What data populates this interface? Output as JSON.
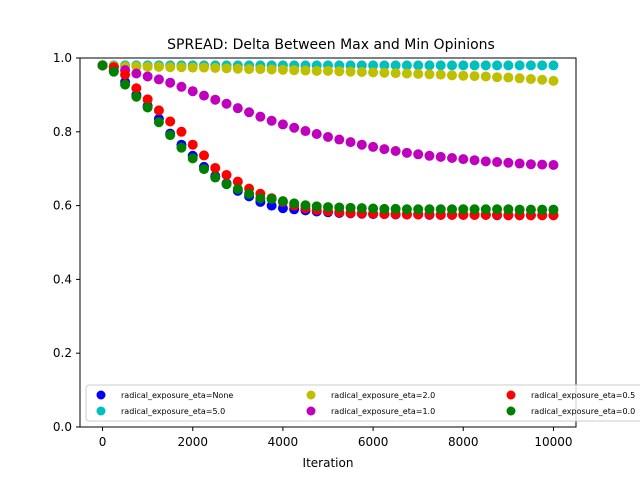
{
  "chart_data": {
    "type": "scatter",
    "title": "SPREAD: Delta Between Max and Min Opinions",
    "xlabel": "Iteration",
    "ylabel": "",
    "xlim": [
      -500,
      10500
    ],
    "ylim": [
      0,
      1.0
    ],
    "xticks": [
      0,
      2000,
      4000,
      6000,
      8000,
      10000
    ],
    "xtick_labels": [
      "0",
      "2000",
      "4000",
      "6000",
      "8000",
      "10000"
    ],
    "yticks": [
      0,
      0.2,
      0.4,
      0.6,
      0.8,
      1.0
    ],
    "ytick_labels": [
      "0.0",
      "0.2",
      "0.4",
      "0.6",
      "0.8",
      "1.0"
    ],
    "grid": false,
    "legend_position": "bottom",
    "x": [
      0,
      250,
      500,
      750,
      1000,
      1250,
      1500,
      1750,
      2000,
      2250,
      2500,
      2750,
      3000,
      3250,
      3500,
      3750,
      4000,
      4250,
      4500,
      4750,
      5000,
      5250,
      5500,
      5750,
      6000,
      6250,
      6500,
      6750,
      7000,
      7250,
      7500,
      7750,
      8000,
      8250,
      8500,
      8750,
      9000,
      9250,
      9500,
      9750,
      10000
    ],
    "series": [
      {
        "name": "radical_exposure_eta=None",
        "color": "#0000ff",
        "values": [
          0.98,
          0.965,
          0.935,
          0.9,
          0.87,
          0.835,
          0.795,
          0.765,
          0.735,
          0.705,
          0.68,
          0.66,
          0.64,
          0.625,
          0.61,
          0.6,
          0.593,
          0.59,
          0.587,
          0.584,
          0.582,
          0.58,
          0.579,
          0.578,
          0.577,
          0.577,
          0.576,
          0.576,
          0.576,
          0.575,
          0.575,
          0.575,
          0.575,
          0.575,
          0.575,
          0.574,
          0.574,
          0.574,
          0.574,
          0.574,
          0.574
        ]
      },
      {
        "name": "radical_exposure_eta=5.0",
        "color": "#00bfbf",
        "values": [
          0.98,
          0.98,
          0.98,
          0.98,
          0.98,
          0.98,
          0.98,
          0.98,
          0.98,
          0.98,
          0.98,
          0.98,
          0.98,
          0.98,
          0.98,
          0.98,
          0.98,
          0.98,
          0.98,
          0.98,
          0.98,
          0.98,
          0.98,
          0.98,
          0.98,
          0.98,
          0.98,
          0.98,
          0.98,
          0.98,
          0.98,
          0.98,
          0.98,
          0.98,
          0.98,
          0.98,
          0.98,
          0.98,
          0.98,
          0.98,
          0.98
        ]
      },
      {
        "name": "radical_exposure_eta=2.0",
        "color": "#bfbf00",
        "values": [
          0.98,
          0.978,
          0.977,
          0.977,
          0.976,
          0.976,
          0.975,
          0.975,
          0.974,
          0.974,
          0.973,
          0.972,
          0.971,
          0.97,
          0.97,
          0.969,
          0.968,
          0.967,
          0.966,
          0.965,
          0.965,
          0.964,
          0.963,
          0.962,
          0.961,
          0.96,
          0.959,
          0.958,
          0.957,
          0.956,
          0.955,
          0.953,
          0.952,
          0.951,
          0.95,
          0.948,
          0.947,
          0.945,
          0.943,
          0.941,
          0.938
        ]
      },
      {
        "name": "radical_exposure_eta=1.0",
        "color": "#bf00bf",
        "values": [
          0.98,
          0.975,
          0.967,
          0.958,
          0.95,
          0.942,
          0.933,
          0.922,
          0.91,
          0.898,
          0.887,
          0.876,
          0.864,
          0.853,
          0.841,
          0.83,
          0.82,
          0.811,
          0.802,
          0.794,
          0.786,
          0.779,
          0.772,
          0.765,
          0.759,
          0.753,
          0.748,
          0.743,
          0.739,
          0.735,
          0.732,
          0.729,
          0.726,
          0.723,
          0.72,
          0.718,
          0.716,
          0.714,
          0.712,
          0.711,
          0.71
        ]
      },
      {
        "name": "radical_exposure_eta=0.5",
        "color": "#ff0000",
        "values": [
          0.98,
          0.975,
          0.955,
          0.918,
          0.888,
          0.858,
          0.828,
          0.8,
          0.765,
          0.736,
          0.702,
          0.683,
          0.665,
          0.646,
          0.632,
          0.62,
          0.61,
          0.6,
          0.593,
          0.588,
          0.585,
          0.582,
          0.58,
          0.579,
          0.578,
          0.577,
          0.577,
          0.576,
          0.576,
          0.576,
          0.575,
          0.575,
          0.575,
          0.575,
          0.575,
          0.575,
          0.574,
          0.574,
          0.574,
          0.574,
          0.574
        ]
      },
      {
        "name": "radical_exposure_eta=0.0",
        "color": "#008000",
        "values": [
          0.98,
          0.963,
          0.928,
          0.895,
          0.866,
          0.826,
          0.791,
          0.757,
          0.728,
          0.699,
          0.676,
          0.658,
          0.645,
          0.632,
          0.62,
          0.618,
          0.612,
          0.606,
          0.601,
          0.598,
          0.596,
          0.595,
          0.594,
          0.593,
          0.592,
          0.591,
          0.591,
          0.59,
          0.59,
          0.59,
          0.59,
          0.59,
          0.59,
          0.59,
          0.59,
          0.59,
          0.59,
          0.589,
          0.589,
          0.589,
          0.589
        ]
      }
    ]
  }
}
